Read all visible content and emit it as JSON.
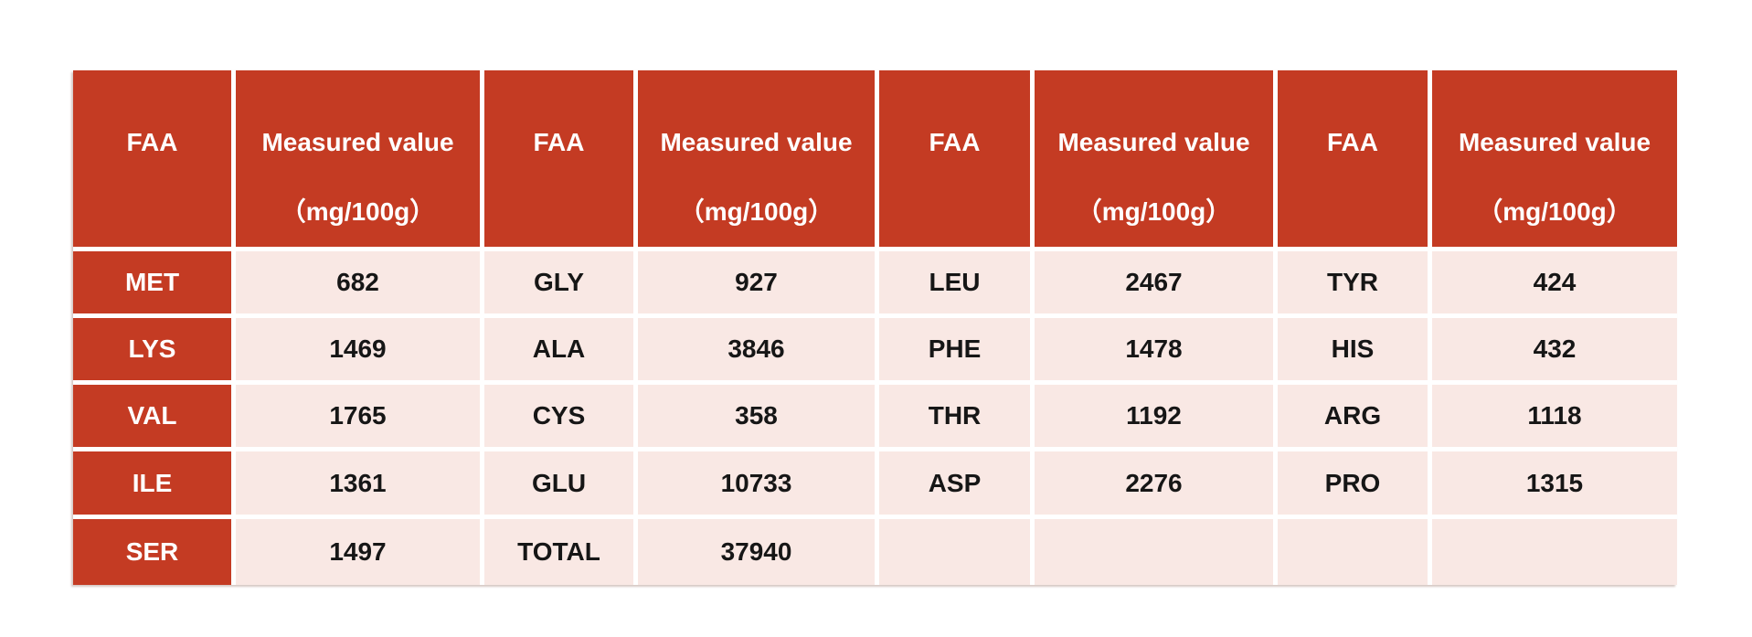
{
  "colors": {
    "accent_red": "#c43b23",
    "cell_pink": "#f9e8e4",
    "header_text": "#ffffff",
    "body_text": "#161616",
    "gutter": "#ffffff"
  },
  "table": {
    "header_groups": [
      {
        "faa": "FAA",
        "value_line1": "Measured value",
        "value_line2": "（mg/100g）"
      },
      {
        "faa": "FAA",
        "value_line1": "Measured value",
        "value_line2": "（mg/100g）"
      },
      {
        "faa": "FAA",
        "value_line1": "Measured value",
        "value_line2": "（mg/100g）"
      },
      {
        "faa": "FAA",
        "value_line1": "Measured value",
        "value_line2": "（mg/100g）"
      }
    ],
    "rows": [
      [
        "MET",
        "682",
        "GLY",
        "927",
        "LEU",
        "2467",
        "TYR",
        "424"
      ],
      [
        "LYS",
        "1469",
        "ALA",
        "3846",
        "PHE",
        "1478",
        "HIS",
        "432"
      ],
      [
        "VAL",
        "1765",
        "CYS",
        "358",
        "THR",
        "1192",
        "ARG",
        "1118"
      ],
      [
        "ILE",
        "1361",
        "GLU",
        "10733",
        "ASP",
        "2276",
        "PRO",
        "1315"
      ],
      [
        "SER",
        "1497",
        "TOTAL",
        "37940",
        "",
        "",
        "",
        ""
      ]
    ]
  },
  "chart_data": {
    "type": "table",
    "title": "",
    "columns": [
      "FAA",
      "Measured value（mg/100g）",
      "FAA",
      "Measured value（mg/100g）",
      "FAA",
      "Measured value（mg/100g）",
      "FAA",
      "Measured value（mg/100g）"
    ],
    "rows": [
      [
        "MET",
        682,
        "GLY",
        927,
        "LEU",
        2467,
        "TYR",
        424
      ],
      [
        "LYS",
        1469,
        "ALA",
        3846,
        "PHE",
        1478,
        "HIS",
        432
      ],
      [
        "VAL",
        1765,
        "CYS",
        358,
        "THR",
        1192,
        "ARG",
        1118
      ],
      [
        "ILE",
        1361,
        "GLU",
        10733,
        "ASP",
        2276,
        "PRO",
        1315
      ],
      [
        "SER",
        1497,
        "TOTAL",
        37940,
        "",
        "",
        "",
        ""
      ]
    ],
    "measured_values_mg_per_100g": {
      "MET": 682,
      "LYS": 1469,
      "VAL": 1765,
      "ILE": 1361,
      "SER": 1497,
      "GLY": 927,
      "ALA": 3846,
      "CYS": 358,
      "GLU": 10733,
      "TOTAL": 37940,
      "LEU": 2467,
      "PHE": 1478,
      "THR": 1192,
      "ASP": 2276,
      "TYR": 424,
      "HIS": 432,
      "ARG": 1118,
      "PRO": 1315
    }
  }
}
